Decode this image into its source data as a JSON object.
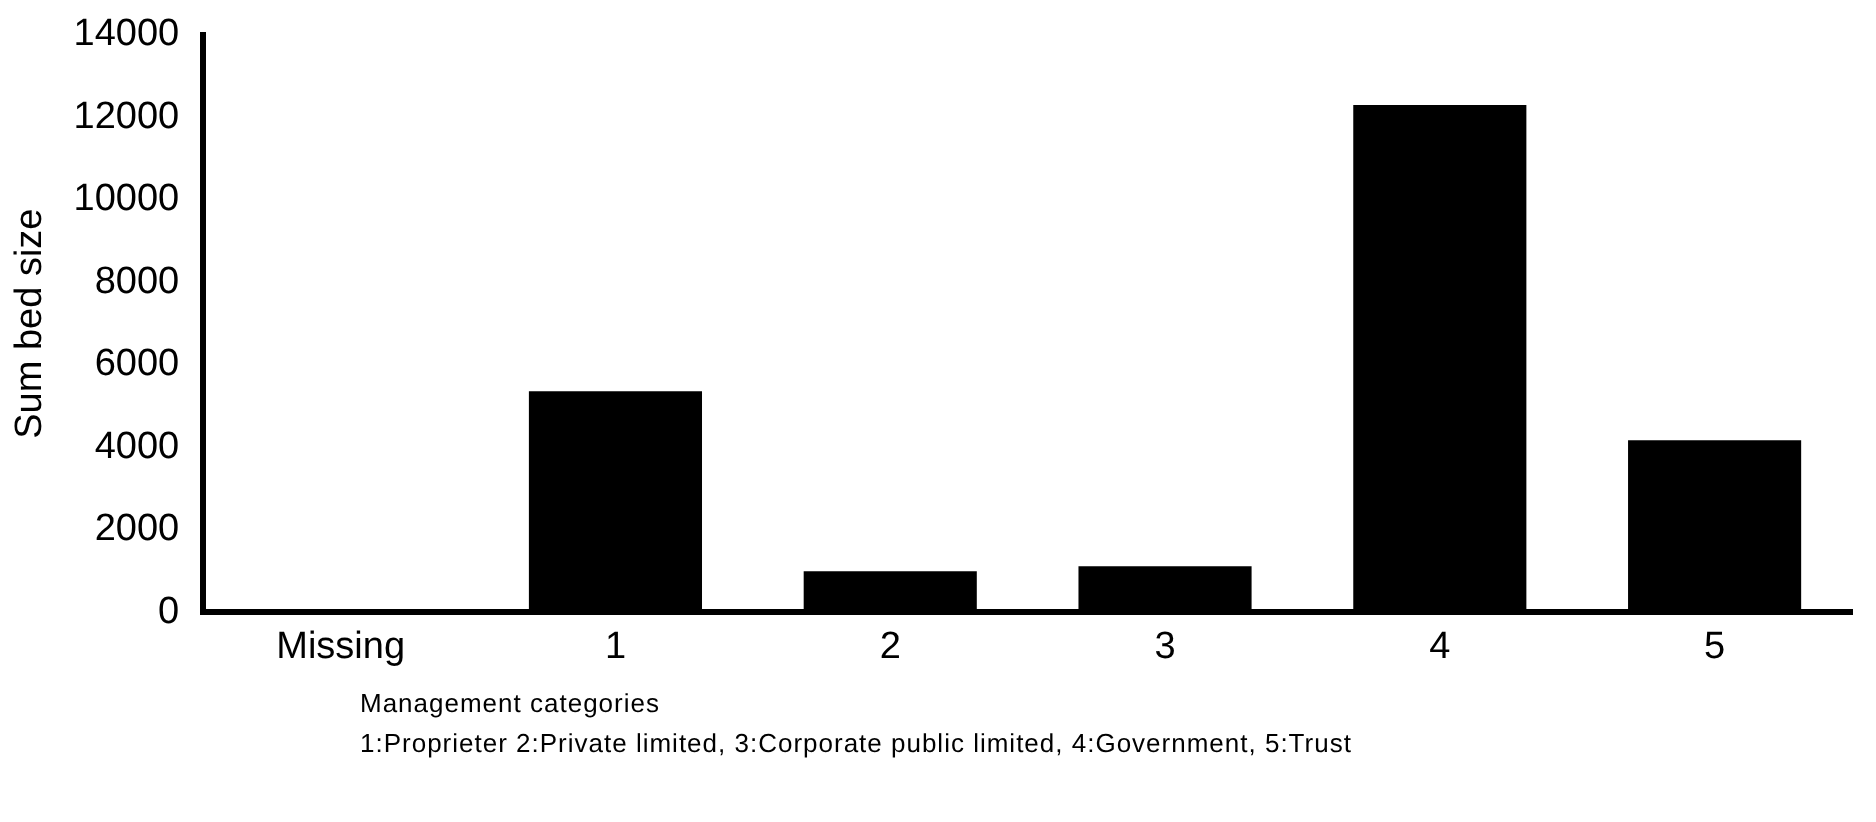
{
  "chart_data": {
    "type": "bar",
    "xlabel": "Management categories",
    "ylabel": "Sum bed size",
    "categories": [
      "Missing",
      "1",
      "2",
      "3",
      "4",
      "5"
    ],
    "values": [
      50,
      5360,
      1000,
      1120,
      12300,
      4170
    ],
    "color": "#000000",
    "ylim": [
      0,
      14000
    ],
    "yticks": [
      0,
      2000,
      4000,
      6000,
      8000,
      10000,
      12000,
      14000
    ],
    "grid": false,
    "legend": false,
    "annotations": [
      "1:Proprieter  2:Private limited, 3:Corporate public limited, 4:Government, 5:Trust"
    ]
  }
}
